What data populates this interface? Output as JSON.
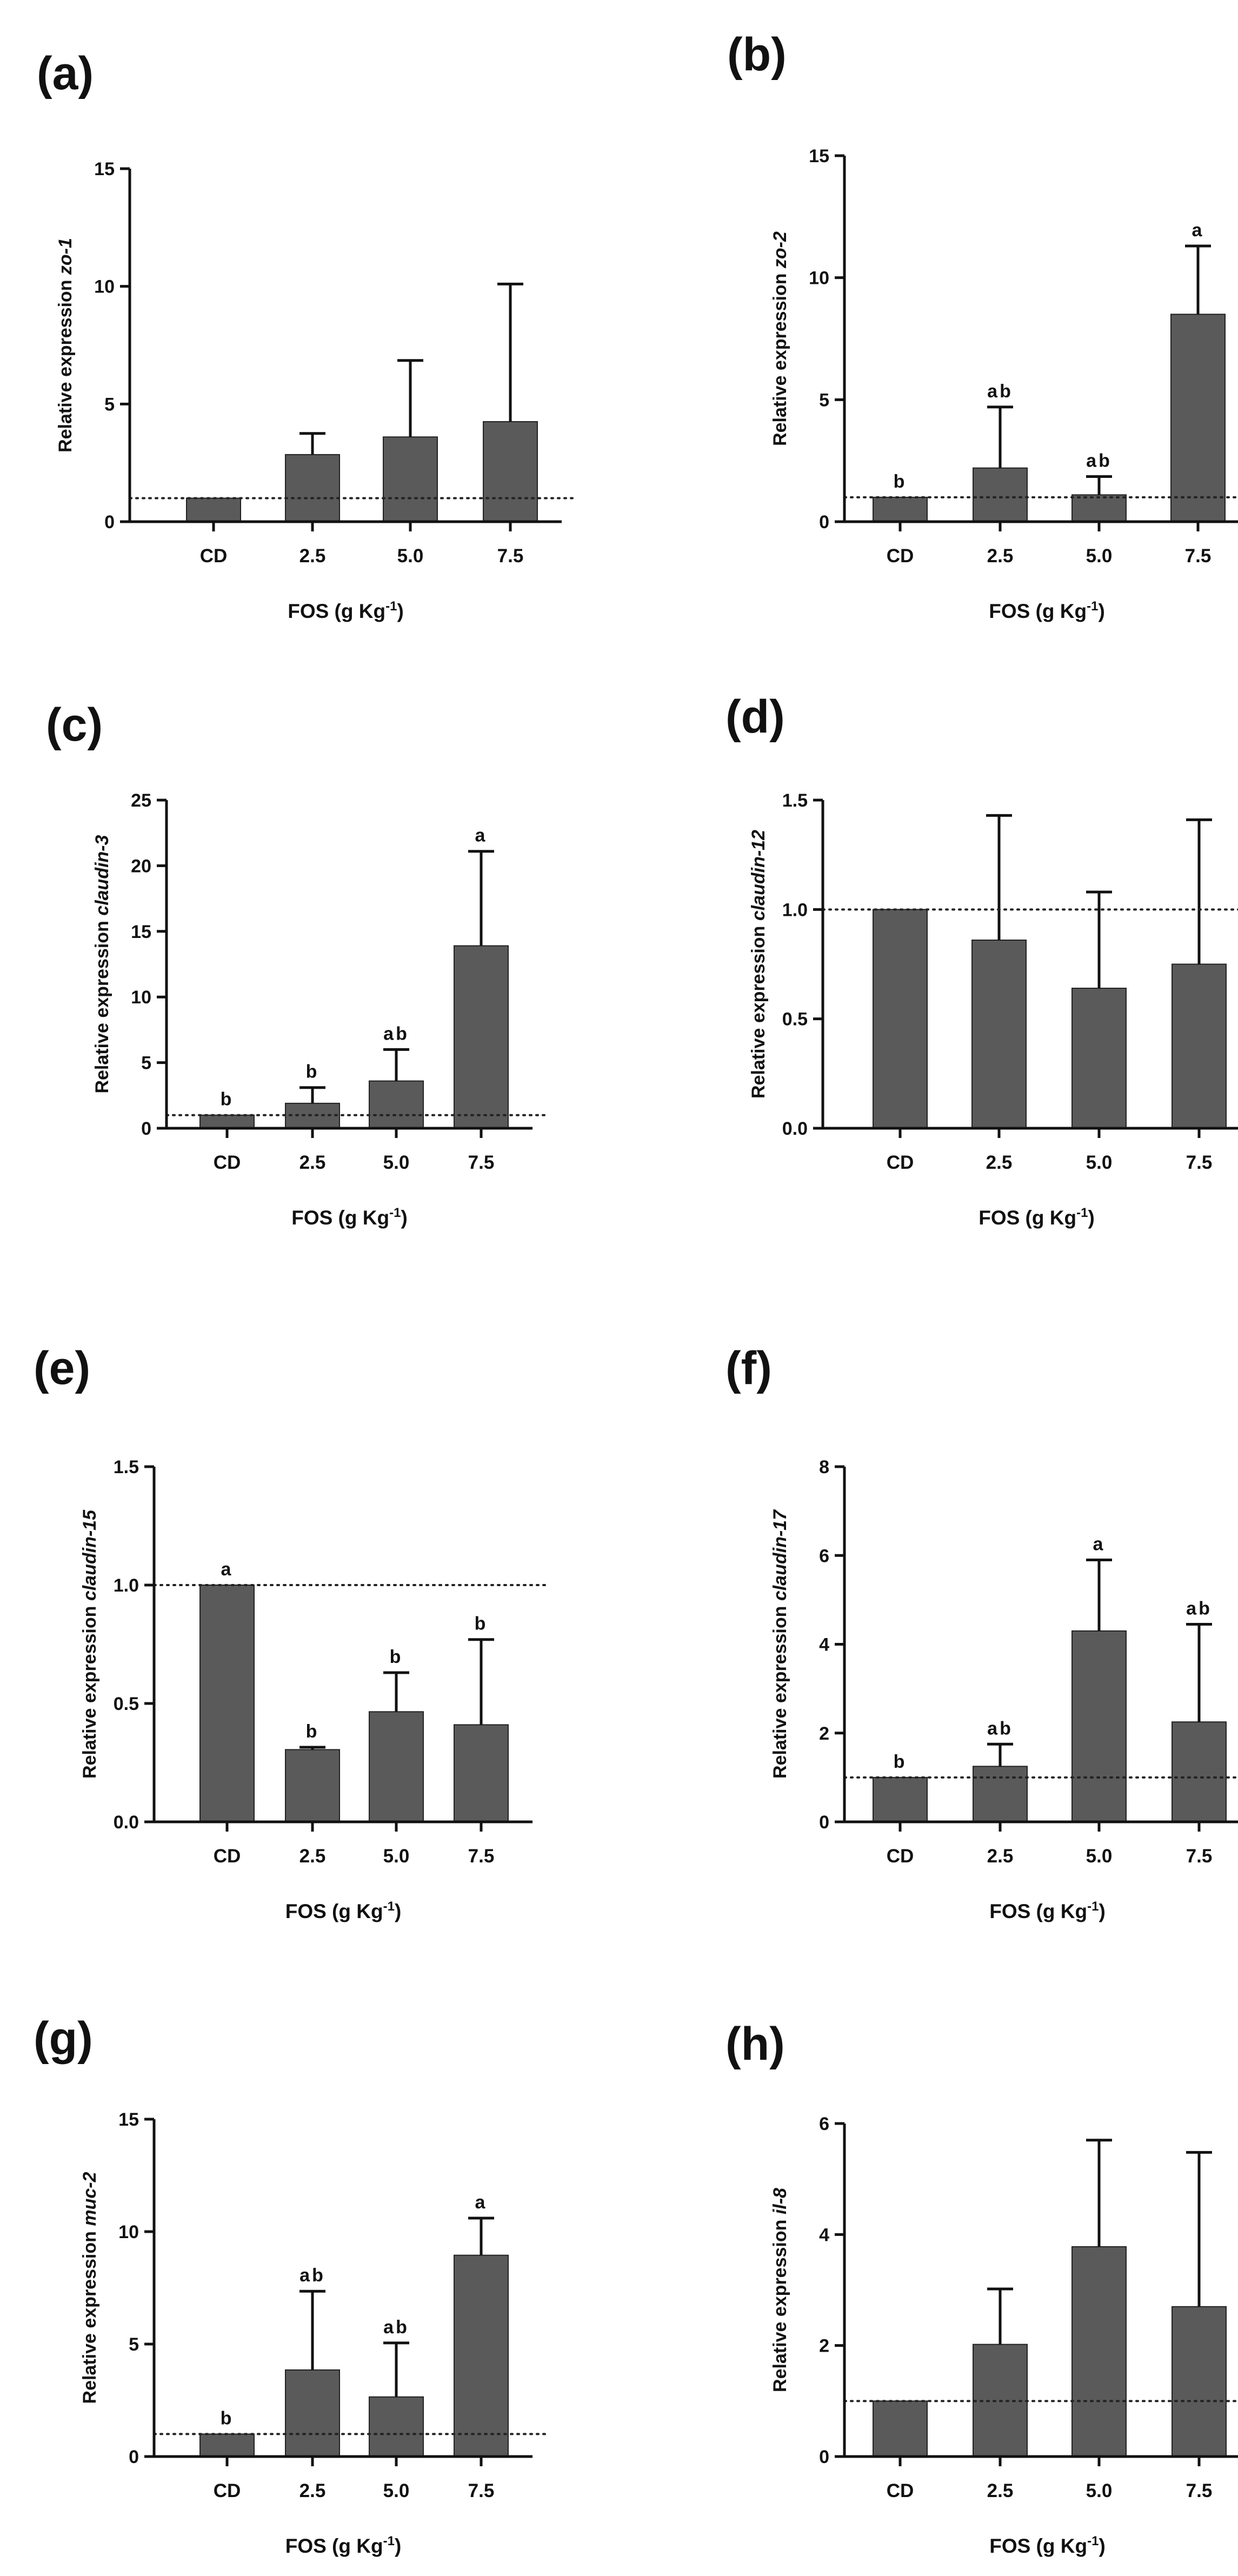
{
  "figure": {
    "bar_color": "#5a5a5a",
    "axis_color": "#111111",
    "reference_line": 1
  },
  "chart_data": [
    {
      "type": "bar",
      "panel_label": "(a)",
      "ylabel_prefix": "Relative expression ",
      "ylabel_gene": "zo-1",
      "xlabel": "FOS (g Kg",
      "xlabel_sup": "-1",
      "xlabel_end": ")",
      "categories": [
        "CD",
        "2.5",
        "5.0",
        "7.5"
      ],
      "values": [
        1.0,
        2.85,
        3.6,
        4.25
      ],
      "errors": [
        0,
        0.9,
        3.25,
        5.85
      ],
      "letters": [
        "",
        "",
        "",
        ""
      ],
      "ylim": [
        0,
        15
      ],
      "yticks": [
        "0",
        "5",
        "10",
        "15"
      ]
    },
    {
      "type": "bar",
      "panel_label": "(b)",
      "ylabel_prefix": "Relative expression ",
      "ylabel_gene": "zo-2",
      "xlabel": "FOS (g Kg",
      "xlabel_sup": "-1",
      "xlabel_end": ")",
      "categories": [
        "CD",
        "2.5",
        "5.0",
        "7.5"
      ],
      "values": [
        1.0,
        2.2,
        1.1,
        8.5
      ],
      "errors": [
        0,
        2.5,
        0.75,
        2.8
      ],
      "letters": [
        "b",
        "ab",
        "ab",
        "a"
      ],
      "ylim": [
        0,
        15
      ],
      "yticks": [
        "0",
        "5",
        "10",
        "15"
      ]
    },
    {
      "type": "bar",
      "panel_label": "(c)",
      "ylabel_prefix": "Relative expression ",
      "ylabel_gene": "claudin-3",
      "xlabel": "FOS (g Kg",
      "xlabel_sup": "-1",
      "xlabel_end": ")",
      "categories": [
        "CD",
        "2.5",
        "5.0",
        "7.5"
      ],
      "values": [
        1.0,
        1.9,
        3.6,
        13.9
      ],
      "errors": [
        0,
        1.2,
        2.4,
        7.2
      ],
      "letters": [
        "b",
        "b",
        "ab",
        "a"
      ],
      "ylim": [
        0,
        25
      ],
      "yticks": [
        "0",
        "5",
        "10",
        "15",
        "20",
        "25"
      ]
    },
    {
      "type": "bar",
      "panel_label": "(d)",
      "ylabel_prefix": "Relative expression ",
      "ylabel_gene": "claudin-12",
      "xlabel": "FOS (g Kg",
      "xlabel_sup": "-1",
      "xlabel_end": ")",
      "categories": [
        "CD",
        "2.5",
        "5.0",
        "7.5"
      ],
      "values": [
        1.0,
        0.86,
        0.64,
        0.75
      ],
      "errors": [
        0,
        0.57,
        0.44,
        0.66
      ],
      "letters": [
        "",
        "",
        "",
        ""
      ],
      "ylim": [
        0,
        1.5
      ],
      "yticks": [
        "0.0",
        "0.5",
        "1.0",
        "1.5"
      ]
    },
    {
      "type": "bar",
      "panel_label": "(e)",
      "ylabel_prefix": "Relative expression ",
      "ylabel_gene": "claudin-15",
      "xlabel": "FOS (g Kg",
      "xlabel_sup": "-1",
      "xlabel_end": ")",
      "categories": [
        "CD",
        "2.5",
        "5.0",
        "7.5"
      ],
      "values": [
        1.0,
        0.305,
        0.465,
        0.41
      ],
      "errors": [
        0,
        0.01,
        0.165,
        0.36
      ],
      "letters": [
        "a",
        "b",
        "b",
        "b"
      ],
      "ylim": [
        0,
        1.5
      ],
      "yticks": [
        "0.0",
        "0.5",
        "1.0",
        "1.5"
      ]
    },
    {
      "type": "bar",
      "panel_label": "(f)",
      "ylabel_prefix": "Relative expression ",
      "ylabel_gene": "claudin-17",
      "xlabel": "FOS (g Kg",
      "xlabel_sup": "-1",
      "xlabel_end": ")",
      "categories": [
        "CD",
        "2.5",
        "5.0",
        "7.5"
      ],
      "values": [
        1.0,
        1.25,
        4.3,
        2.25
      ],
      "errors": [
        0,
        0.5,
        1.6,
        2.2
      ],
      "letters": [
        "b",
        "ab",
        "a",
        "ab"
      ],
      "ylim": [
        0,
        8
      ],
      "yticks": [
        "0",
        "2",
        "4",
        "6",
        "8"
      ]
    },
    {
      "type": "bar",
      "panel_label": "(g)",
      "ylabel_prefix": "Relative expression ",
      "ylabel_gene": "muc-2",
      "xlabel": "FOS (g Kg",
      "xlabel_sup": "-1",
      "xlabel_end": ")",
      "categories": [
        "CD",
        "2.5",
        "5.0",
        "7.5"
      ],
      "values": [
        1.0,
        3.85,
        2.65,
        8.95
      ],
      "errors": [
        0,
        3.5,
        2.4,
        1.65
      ],
      "letters": [
        "b",
        "ab",
        "ab",
        "a"
      ],
      "ylim": [
        0,
        15
      ],
      "yticks": [
        "0",
        "5",
        "10",
        "15"
      ]
    },
    {
      "type": "bar",
      "panel_label": "(h)",
      "ylabel_prefix": "Relative expression ",
      "ylabel_gene": "il-8",
      "xlabel": "FOS (g Kg",
      "xlabel_sup": "-1",
      "xlabel_end": ")",
      "categories": [
        "CD",
        "2.5",
        "5.0",
        "7.5"
      ],
      "values": [
        1.0,
        2.02,
        3.78,
        2.7
      ],
      "errors": [
        0,
        1.0,
        1.92,
        2.78
      ],
      "letters": [
        "",
        "",
        "",
        ""
      ],
      "ylim": [
        0,
        6
      ],
      "yticks": [
        "0",
        "2",
        "4",
        "6"
      ]
    }
  ]
}
